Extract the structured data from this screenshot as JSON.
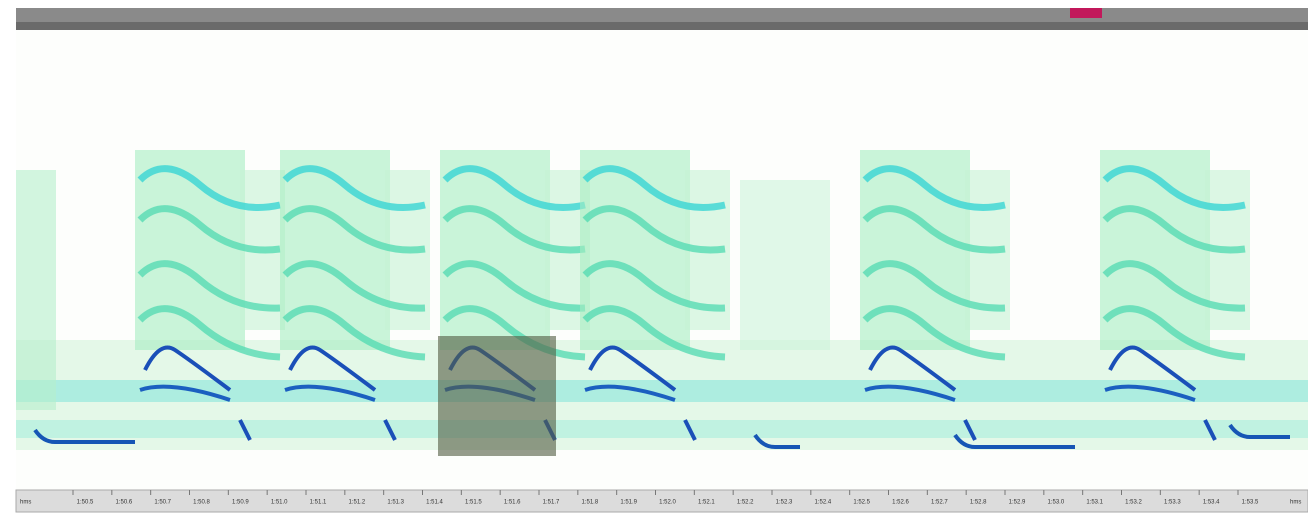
{
  "ruler": {
    "start_unit": "hms",
    "end_unit": "hms",
    "labels": [
      "1:50.5",
      "1:50.6",
      "1:50.7",
      "1:50.8",
      "1:50.9",
      "1:51.0",
      "1:51.1",
      "1:51.2",
      "1:51.3",
      "1:51.4",
      "1:51.5",
      "1:51.6",
      "1:51.7",
      "1:51.8",
      "1:51.9",
      "1:52.0",
      "1:52.1",
      "1:52.2",
      "1:52.3",
      "1:52.4",
      "1:52.5",
      "1:52.6",
      "1:52.7",
      "1:52.8",
      "1:52.9",
      "1:53.0",
      "1:53.1",
      "1:53.2",
      "1:53.3",
      "1:53.4",
      "1:53.5"
    ]
  }
}
